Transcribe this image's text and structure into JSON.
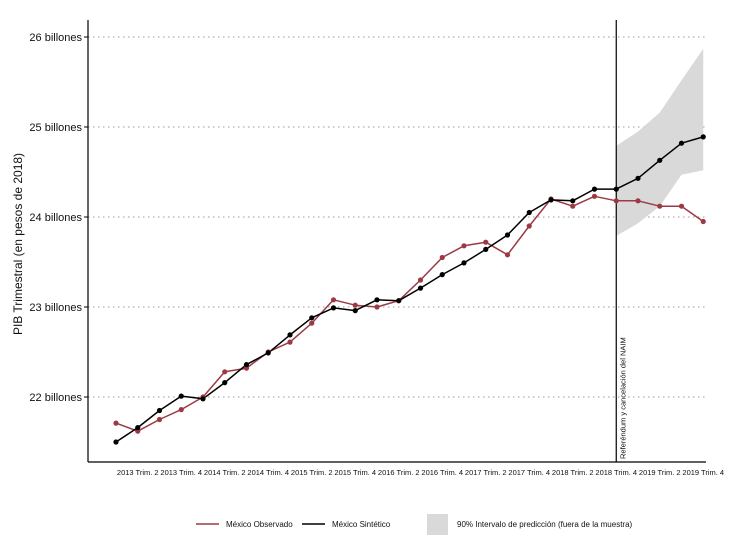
{
  "chart_data": {
    "type": "line",
    "ylabel": "PIB Trimestral (en pesos de 2018)",
    "xlabel": "",
    "ylim": [
      21.2,
      26.4
    ],
    "yticks": [
      {
        "value": 22,
        "label": "22 billones"
      },
      {
        "value": 23,
        "label": "23 billones"
      },
      {
        "value": 24,
        "label": "24 billones"
      },
      {
        "value": 25,
        "label": "25 billones"
      },
      {
        "value": 26,
        "label": "26 billones"
      }
    ],
    "x_ticks": [
      {
        "index": 1,
        "label": "2013 Trim. 2"
      },
      {
        "index": 3,
        "label": "2013 Trim. 4"
      },
      {
        "index": 5,
        "label": "2014 Trim. 2"
      },
      {
        "index": 7,
        "label": "2014 Trim. 4"
      },
      {
        "index": 9,
        "label": "2015 Trim. 2"
      },
      {
        "index": 11,
        "label": "2015 Trim. 4"
      },
      {
        "index": 13,
        "label": "2016 Trim. 2"
      },
      {
        "index": 15,
        "label": "2016 Trim. 4"
      },
      {
        "index": 17,
        "label": "2017 Trim. 2"
      },
      {
        "index": 19,
        "label": "2017 Trim. 4"
      },
      {
        "index": 21,
        "label": "2018 Trim. 2"
      },
      {
        "index": 23,
        "label": "2018 Trim. 4"
      },
      {
        "index": 25,
        "label": "2019 Trim. 2"
      },
      {
        "index": 27,
        "label": "2019 Trim. 4"
      }
    ],
    "grid": "horizontal-dotted",
    "legend_position": "bottom",
    "series": [
      {
        "name": "México Observado",
        "color": "#9b3a45",
        "values": [
          21.71,
          21.62,
          21.75,
          21.86,
          22.0,
          22.28,
          22.32,
          22.5,
          22.61,
          22.82,
          23.08,
          23.02,
          23.0,
          23.07,
          23.3,
          23.55,
          23.68,
          23.72,
          23.58,
          23.9,
          24.2,
          24.12,
          24.23,
          24.18,
          24.18,
          24.12,
          24.12,
          23.95
        ]
      },
      {
        "name": "México Sintético",
        "color": "#000000",
        "values": [
          21.5,
          21.66,
          21.85,
          22.01,
          21.98,
          22.16,
          22.36,
          22.49,
          22.69,
          22.88,
          22.99,
          22.96,
          23.08,
          23.07,
          23.21,
          23.36,
          23.49,
          23.64,
          23.8,
          24.05,
          24.19,
          24.18,
          24.31,
          24.31,
          24.43,
          24.63,
          24.82,
          24.89
        ]
      }
    ],
    "interval": {
      "name": "90% Intervalo de predicción (fuera de la muestra)",
      "color": "#d9d9d9",
      "start_index": 23,
      "upper": [
        24.79,
        24.95,
        25.16,
        25.52,
        25.87
      ],
      "lower": [
        23.79,
        23.93,
        24.12,
        24.47,
        24.52
      ]
    },
    "annotation": {
      "index": 23,
      "text": "Referéndum y cancelación del NAIM"
    }
  }
}
